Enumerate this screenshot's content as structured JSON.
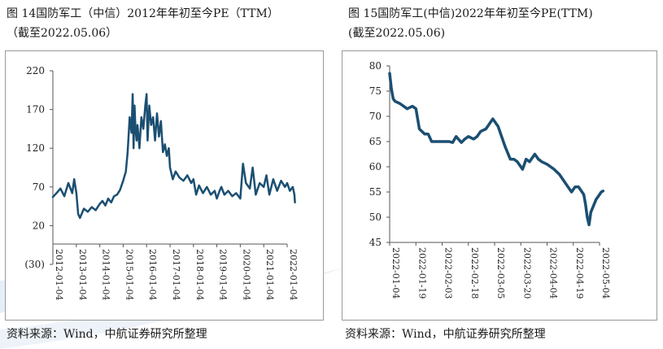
{
  "left": {
    "title_line1": "图 14国防军工（中信）2012年年初至今PE（TTM）",
    "title_line2": "（截至2022.05.06）",
    "source": "资料来源：Wind，中航证券研究所整理"
  },
  "right": {
    "title_line1": "图 15国防军工(中信)2022年年初至今PE(TTM)",
    "title_line2": "(截至2022.05.06)",
    "source": "资料来源：Wind，中航证券研究所整理"
  },
  "colors": {
    "line": "#1b4f72",
    "watermark": "#dce8f3"
  },
  "chart_data": [
    {
      "type": "line",
      "title": "国防军工（中信）2012年年初至今PE（TTM）",
      "y_ticks": [
        "220",
        "170",
        "120",
        "70",
        "20",
        "(30)"
      ],
      "ylim": [
        -30,
        220
      ],
      "x_ticks": [
        "2012-01-04",
        "2013-01-04",
        "2014-01-04",
        "2015-01-04",
        "2016-01-04",
        "2017-01-04",
        "2018-01-04",
        "2019-01-04",
        "2020-01-04",
        "2021-01-04",
        "2022-01-04"
      ],
      "grid": false,
      "series": [
        {
          "x": [
            "2012-01-04",
            "2012-03-01",
            "2012-05-01",
            "2012-07-01",
            "2012-09-01",
            "2012-11-01",
            "2012-12-01",
            "2013-01-04",
            "2013-02-01",
            "2013-03-01",
            "2013-05-01",
            "2013-07-01",
            "2013-09-01",
            "2013-11-01",
            "2014-01-04",
            "2014-02-15",
            "2014-04-01",
            "2014-05-15",
            "2014-07-01",
            "2014-08-15",
            "2014-10-01",
            "2014-11-15",
            "2015-01-04",
            "2015-02-15",
            "2015-03-15",
            "2015-04-15",
            "2015-05-15",
            "2015-06-01",
            "2015-06-15",
            "2015-07-01",
            "2015-07-15",
            "2015-08-01",
            "2015-08-15",
            "2015-09-15",
            "2015-10-15",
            "2015-11-15",
            "2015-12-15",
            "2016-01-04",
            "2016-01-20",
            "2016-02-15",
            "2016-03-15",
            "2016-04-15",
            "2016-05-15",
            "2016-06-15",
            "2016-07-15",
            "2016-08-15",
            "2016-09-15",
            "2016-10-15",
            "2016-11-15",
            "2016-12-15",
            "2017-01-04",
            "2017-02-15",
            "2017-04-01",
            "2017-06-01",
            "2017-08-01",
            "2017-10-01",
            "2017-12-01",
            "2018-01-04",
            "2018-02-15",
            "2018-04-01",
            "2018-06-01",
            "2018-08-01",
            "2018-10-01",
            "2018-12-01",
            "2019-01-04",
            "2019-02-15",
            "2019-03-15",
            "2019-05-01",
            "2019-07-01",
            "2019-09-01",
            "2019-11-01",
            "2020-01-04",
            "2020-02-15",
            "2020-04-01",
            "2020-06-01",
            "2020-07-15",
            "2020-09-01",
            "2020-11-01",
            "2021-01-04",
            "2021-02-15",
            "2021-04-01",
            "2021-06-01",
            "2021-08-01",
            "2021-10-01",
            "2021-12-01",
            "2022-01-04",
            "2022-02-15",
            "2022-04-01",
            "2022-04-27",
            "2022-05-06"
          ],
          "values": [
            57,
            62,
            68,
            58,
            75,
            62,
            80,
            62,
            35,
            30,
            42,
            38,
            44,
            40,
            48,
            52,
            46,
            55,
            50,
            58,
            60,
            66,
            78,
            90,
            115,
            160,
            140,
            190,
            120,
            175,
            145,
            130,
            150,
            120,
            160,
            145,
            175,
            190,
            130,
            175,
            150,
            160,
            130,
            165,
            135,
            155,
            115,
            125,
            110,
            120,
            95,
            80,
            90,
            82,
            78,
            85,
            75,
            80,
            60,
            72,
            62,
            70,
            60,
            65,
            55,
            65,
            70,
            60,
            65,
            58,
            62,
            55,
            100,
            75,
            68,
            95,
            60,
            75,
            70,
            85,
            60,
            80,
            65,
            78,
            70,
            75,
            65,
            70,
            60,
            50
          ]
        }
      ]
    },
    {
      "type": "line",
      "title": "国防军工(中信)2022年年初至今PE(TTM)",
      "y_ticks": [
        "80",
        "75",
        "70",
        "65",
        "60",
        "55",
        "50",
        "45"
      ],
      "ylim": [
        45,
        80
      ],
      "x_ticks": [
        "2022-01-04",
        "2022-01-19",
        "2022-02-03",
        "2022-02-18",
        "2022-03-05",
        "2022-03-20",
        "2022-04-04",
        "2022-04-19",
        "2022-05-04"
      ],
      "grid": false,
      "series": [
        {
          "x": [
            "2022-01-04",
            "2022-01-05",
            "2022-01-06",
            "2022-01-07",
            "2022-01-10",
            "2022-01-12",
            "2022-01-14",
            "2022-01-17",
            "2022-01-19",
            "2022-01-21",
            "2022-01-24",
            "2022-01-26",
            "2022-01-28",
            "2022-02-01",
            "2022-02-03",
            "2022-02-07",
            "2022-02-09",
            "2022-02-11",
            "2022-02-14",
            "2022-02-16",
            "2022-02-18",
            "2022-02-21",
            "2022-02-23",
            "2022-02-25",
            "2022-02-28",
            "2022-03-02",
            "2022-03-04",
            "2022-03-07",
            "2022-03-09",
            "2022-03-11",
            "2022-03-14",
            "2022-03-16",
            "2022-03-18",
            "2022-03-21",
            "2022-03-23",
            "2022-03-25",
            "2022-03-28",
            "2022-03-30",
            "2022-04-01",
            "2022-04-04",
            "2022-04-06",
            "2022-04-08",
            "2022-04-11",
            "2022-04-13",
            "2022-04-15",
            "2022-04-18",
            "2022-04-20",
            "2022-04-22",
            "2022-04-25",
            "2022-04-26",
            "2022-04-27",
            "2022-04-28",
            "2022-04-29",
            "2022-05-02",
            "2022-05-04",
            "2022-05-05",
            "2022-05-06"
          ],
          "values": [
            78.5,
            75.5,
            73.5,
            73,
            72.5,
            72,
            71.5,
            72,
            71.5,
            67.5,
            66.5,
            66.5,
            65,
            65,
            65,
            65,
            64.8,
            66,
            64.8,
            65.5,
            66,
            65.5,
            66,
            67,
            67.5,
            68.5,
            69.5,
            68,
            66,
            64,
            61.5,
            61.5,
            61,
            59.5,
            61.5,
            61,
            62.5,
            61.5,
            61,
            60.5,
            60,
            59.5,
            58.5,
            57.5,
            56.5,
            55,
            56,
            56,
            54.5,
            52.5,
            50,
            48.5,
            51,
            53.5,
            54.5,
            55,
            55.2
          ]
        }
      ]
    }
  ]
}
